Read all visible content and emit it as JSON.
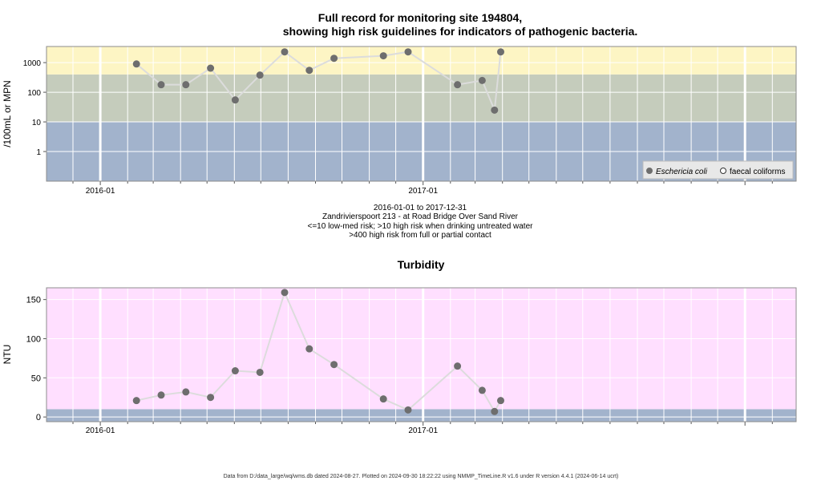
{
  "page": {
    "title_line1": "Full record for monitoring site 194804,",
    "title_line2": "showing high risk guidelines for indicators of pathogenic bacteria.",
    "caption_line1": "2016-01-01 to 2017-12-31",
    "caption_line2": "Zandrivierspoort 213 - at Road Bridge Over Sand River",
    "caption_line3": "<=10 low-med risk; >10 high risk when drinking untreated water",
    "caption_line4": ">400 high risk from full or partial contact",
    "footer": "Data from D:/data_large/wq/wms.db dated 2024-08-27. Plotted on 2024-09-30 18:22:22 using NMMP_TimeLine.R v1.6 under R version 4.4.1 (2024-06-14 ucrt)"
  },
  "colors": {
    "band_low": "#a2b3cc",
    "band_mid": "#c5ccbc",
    "band_high": "#fdf5c4",
    "band_turbidity": "#ffdfff",
    "marker": "#6e6e6e",
    "line": "#dcdcdc",
    "grid": "#ffffff",
    "frame": "#8c8c8c"
  },
  "chart_data": [
    {
      "type": "line",
      "title": "",
      "xlabel": "",
      "ylabel": "/100mL or MPN",
      "yscale": "log",
      "xlim": [
        "2015-11-01",
        "2018-02-28"
      ],
      "ylim": [
        0.1,
        3500
      ],
      "x_ticks": [
        {
          "date": "2016-01-01",
          "label": "2016-01"
        },
        {
          "date": "2017-01-01",
          "label": "2017-01"
        }
      ],
      "y_ticks": [
        {
          "value": 1,
          "label": "1"
        },
        {
          "value": 10,
          "label": "10"
        },
        {
          "value": 100,
          "label": "100"
        },
        {
          "value": 1000,
          "label": "1000"
        }
      ],
      "bands": [
        {
          "from": 0.1,
          "to": 10,
          "color_key": "band_low"
        },
        {
          "from": 10,
          "to": 400,
          "color_key": "band_mid"
        },
        {
          "from": 400,
          "to": 3500,
          "color_key": "band_high"
        }
      ],
      "legend": {
        "position": "bottom-right",
        "entries": [
          {
            "label": "Eschericia coli",
            "marker": "filled",
            "italic": true
          },
          {
            "label": "faecal coliforms",
            "marker": "open",
            "italic": false
          }
        ]
      },
      "series": [
        {
          "name": "Eschericia coli",
          "marker": "filled",
          "points": [
            {
              "x": "2016-02-11",
              "y": 900
            },
            {
              "x": "2016-03-10",
              "y": 180
            },
            {
              "x": "2016-04-07",
              "y": 180
            },
            {
              "x": "2016-05-05",
              "y": 650
            },
            {
              "x": "2016-06-02",
              "y": 55
            },
            {
              "x": "2016-06-30",
              "y": 380
            },
            {
              "x": "2016-07-28",
              "y": 2300
            },
            {
              "x": "2016-08-25",
              "y": 550
            },
            {
              "x": "2016-09-22",
              "y": 1400
            },
            {
              "x": "2016-11-17",
              "y": 1700
            },
            {
              "x": "2016-12-15",
              "y": 2300
            },
            {
              "x": "2017-02-09",
              "y": 180
            },
            {
              "x": "2017-03-09",
              "y": 250
            },
            {
              "x": "2017-03-23",
              "y": 25
            },
            {
              "x": "2017-03-30",
              "y": 2300
            }
          ]
        }
      ]
    },
    {
      "type": "line",
      "title": "Turbidity",
      "xlabel": "",
      "ylabel": "NTU",
      "xlim": [
        "2015-11-01",
        "2018-02-28"
      ],
      "ylim": [
        -6,
        165
      ],
      "x_ticks": [
        {
          "date": "2016-01-01",
          "label": "2016-01"
        },
        {
          "date": "2017-01-01",
          "label": "2017-01"
        }
      ],
      "y_ticks": [
        {
          "value": 0,
          "label": "0"
        },
        {
          "value": 50,
          "label": "50"
        },
        {
          "value": 100,
          "label": "100"
        },
        {
          "value": 150,
          "label": "150"
        }
      ],
      "bands": [
        {
          "from": -6,
          "to": 10,
          "color_key": "band_low"
        },
        {
          "from": 10,
          "to": 165,
          "color_key": "band_turbidity"
        }
      ],
      "series": [
        {
          "name": "",
          "marker": "filled",
          "points": [
            {
              "x": "2016-02-11",
              "y": 21
            },
            {
              "x": "2016-03-10",
              "y": 28
            },
            {
              "x": "2016-04-07",
              "y": 32
            },
            {
              "x": "2016-05-05",
              "y": 25
            },
            {
              "x": "2016-06-02",
              "y": 59
            },
            {
              "x": "2016-06-30",
              "y": 57
            },
            {
              "x": "2016-07-28",
              "y": 159
            },
            {
              "x": "2016-08-25",
              "y": 87
            },
            {
              "x": "2016-09-22",
              "y": 67
            },
            {
              "x": "2016-11-17",
              "y": 23
            },
            {
              "x": "2016-12-15",
              "y": 9
            },
            {
              "x": "2017-02-09",
              "y": 65
            },
            {
              "x": "2017-03-09",
              "y": 34
            },
            {
              "x": "2017-03-23",
              "y": 7
            },
            {
              "x": "2017-03-30",
              "y": 21
            }
          ]
        }
      ]
    }
  ]
}
